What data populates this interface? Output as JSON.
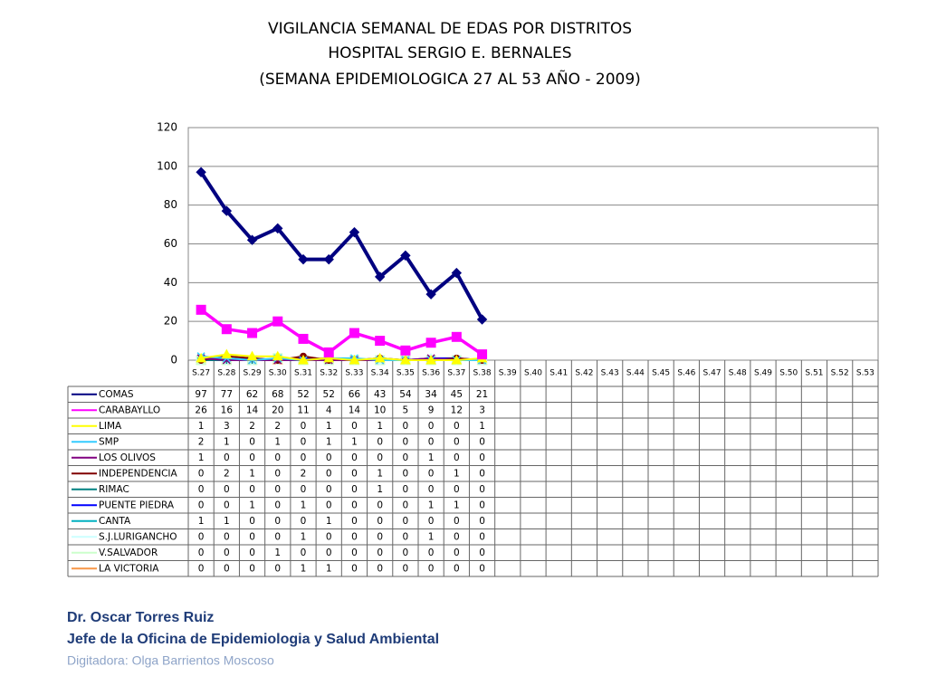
{
  "chart_data": {
    "type": "line",
    "title": [
      "VIGILANCIA SEMANAL DE EDAS POR DISTRITOS",
      "HOSPITAL SERGIO E. BERNALES",
      "(SEMANA EPIDEMIOLOGICA 27 AL 53 AÑO - 2009)"
    ],
    "categories": [
      "S.27",
      "S.28",
      "S.29",
      "S.30",
      "S.31",
      "S.32",
      "S.33",
      "S.34",
      "S.35",
      "S.36",
      "S.37",
      "S.38",
      "S.39",
      "S.40",
      "S.41",
      "S.42",
      "S.43",
      "S.44",
      "S.45",
      "S.46",
      "S.47",
      "S.48",
      "S.49",
      "S.50",
      "S.51",
      "S.52",
      "S.53"
    ],
    "ylim": [
      0,
      120
    ],
    "yticks": [
      0,
      20,
      40,
      60,
      80,
      100,
      120
    ],
    "grid": true,
    "series": [
      {
        "name": "COMAS",
        "color": "#000080",
        "marker": "diamond",
        "values": [
          97,
          77,
          62,
          68,
          52,
          52,
          66,
          43,
          54,
          34,
          45,
          21,
          null,
          null,
          null,
          null,
          null,
          null,
          null,
          null,
          null,
          null,
          null,
          null,
          null,
          null,
          null
        ]
      },
      {
        "name": "CARABAYLLO",
        "color": "#ff00ff",
        "marker": "square",
        "values": [
          26,
          16,
          14,
          20,
          11,
          4,
          14,
          10,
          5,
          9,
          12,
          3,
          null,
          null,
          null,
          null,
          null,
          null,
          null,
          null,
          null,
          null,
          null,
          null,
          null,
          null,
          null
        ]
      },
      {
        "name": "LIMA",
        "color": "#ffff00",
        "marker": "triangle",
        "values": [
          1,
          3,
          2,
          2,
          0,
          1,
          0,
          1,
          0,
          0,
          0,
          1,
          null,
          null,
          null,
          null,
          null,
          null,
          null,
          null,
          null,
          null,
          null,
          null,
          null,
          null,
          null
        ]
      },
      {
        "name": "SMP",
        "color": "#33ccff",
        "marker": "x",
        "values": [
          2,
          1,
          0,
          1,
          0,
          1,
          1,
          0,
          0,
          0,
          0,
          0,
          null,
          null,
          null,
          null,
          null,
          null,
          null,
          null,
          null,
          null,
          null,
          null,
          null,
          null,
          null
        ]
      },
      {
        "name": "LOS OLIVOS",
        "color": "#800080",
        "marker": "x",
        "values": [
          1,
          0,
          0,
          0,
          0,
          0,
          0,
          0,
          0,
          1,
          0,
          0,
          null,
          null,
          null,
          null,
          null,
          null,
          null,
          null,
          null,
          null,
          null,
          null,
          null,
          null,
          null
        ]
      },
      {
        "name": "INDEPENDENCIA",
        "color": "#800000",
        "marker": "circle",
        "values": [
          0,
          2,
          1,
          0,
          2,
          0,
          0,
          1,
          0,
          0,
          1,
          0,
          null,
          null,
          null,
          null,
          null,
          null,
          null,
          null,
          null,
          null,
          null,
          null,
          null,
          null,
          null
        ]
      },
      {
        "name": "RIMAC",
        "color": "#008080",
        "marker": "plus",
        "values": [
          0,
          0,
          0,
          0,
          0,
          0,
          0,
          1,
          0,
          0,
          0,
          0,
          null,
          null,
          null,
          null,
          null,
          null,
          null,
          null,
          null,
          null,
          null,
          null,
          null,
          null,
          null
        ]
      },
      {
        "name": "PUENTE PIEDRA",
        "color": "#0000ff",
        "marker": "dash",
        "values": [
          0,
          0,
          1,
          0,
          1,
          0,
          0,
          0,
          0,
          1,
          1,
          0,
          null,
          null,
          null,
          null,
          null,
          null,
          null,
          null,
          null,
          null,
          null,
          null,
          null,
          null,
          null
        ]
      },
      {
        "name": "CANTA",
        "color": "#00b0c0",
        "marker": "dash",
        "values": [
          1,
          1,
          0,
          0,
          0,
          1,
          0,
          0,
          0,
          0,
          0,
          0,
          null,
          null,
          null,
          null,
          null,
          null,
          null,
          null,
          null,
          null,
          null,
          null,
          null,
          null,
          null
        ]
      },
      {
        "name": "S.J.LURIGANCHO",
        "color": "#ccffff",
        "marker": "diamond",
        "values": [
          0,
          0,
          0,
          0,
          1,
          0,
          0,
          0,
          0,
          1,
          0,
          0,
          null,
          null,
          null,
          null,
          null,
          null,
          null,
          null,
          null,
          null,
          null,
          null,
          null,
          null,
          null
        ]
      },
      {
        "name": "V.SALVADOR",
        "color": "#ccffcc",
        "marker": "square",
        "values": [
          0,
          0,
          0,
          1,
          0,
          0,
          0,
          0,
          0,
          0,
          0,
          0,
          null,
          null,
          null,
          null,
          null,
          null,
          null,
          null,
          null,
          null,
          null,
          null,
          null,
          null,
          null
        ]
      },
      {
        "name": "LA VICTORIA",
        "color": "#f79646",
        "marker": "triangle",
        "values": [
          0,
          0,
          0,
          0,
          1,
          1,
          0,
          0,
          0,
          0,
          0,
          0,
          null,
          null,
          null,
          null,
          null,
          null,
          null,
          null,
          null,
          null,
          null,
          null,
          null,
          null,
          null
        ]
      }
    ]
  },
  "footer": {
    "author": "Dr.  Oscar  Torres Ruiz",
    "role": "Jefe de la Oficina de Epidemiologia y  Salud Ambiental",
    "typist": "Digitadora: Olga Barrientos Moscoso"
  }
}
